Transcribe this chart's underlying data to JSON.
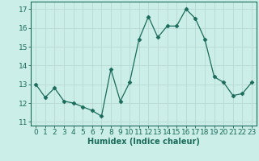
{
  "x": [
    0,
    1,
    2,
    3,
    4,
    5,
    6,
    7,
    8,
    9,
    10,
    11,
    12,
    13,
    14,
    15,
    16,
    17,
    18,
    19,
    20,
    21,
    22,
    23
  ],
  "y": [
    13.0,
    12.3,
    12.8,
    12.1,
    12.0,
    11.8,
    11.6,
    11.3,
    13.8,
    12.1,
    13.1,
    15.4,
    16.6,
    15.5,
    16.1,
    16.1,
    17.0,
    16.5,
    15.4,
    13.4,
    13.1,
    12.4,
    12.5,
    13.1
  ],
  "xlabel": "Humidex (Indice chaleur)",
  "ylabel_ticks": [
    11,
    12,
    13,
    14,
    15,
    16,
    17
  ],
  "ylim": [
    10.8,
    17.4
  ],
  "xlim": [
    -0.5,
    23.5
  ],
  "line_color": "#1a6b5a",
  "marker": "D",
  "marker_size": 2.5,
  "bg_color": "#cceee8",
  "grid_color": "#b8d8d4",
  "tick_label_color": "#1a6b5a",
  "xlabel_color": "#1a6b5a",
  "xlabel_fontsize": 7,
  "tick_fontsize": 6.5
}
